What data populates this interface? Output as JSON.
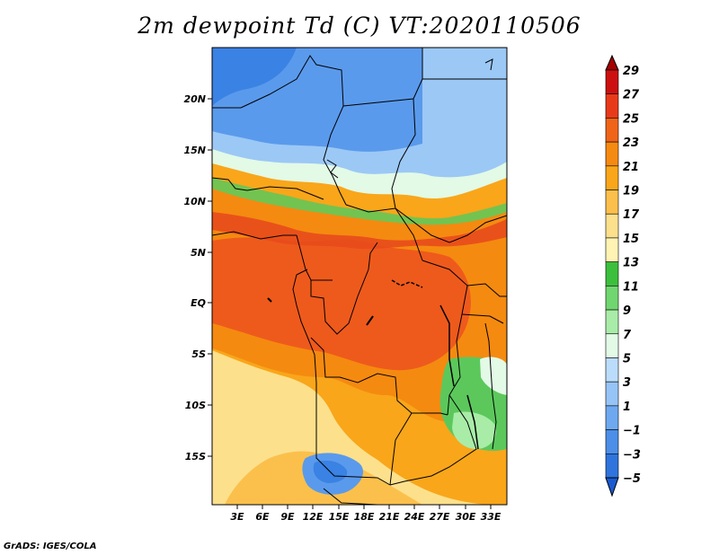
{
  "title": "2m dewpoint Td (C) VT:2020110506",
  "credit": "GrADS: IGES/COLA",
  "lat_ticks": [
    "20N",
    "15N",
    "10N",
    "5N",
    "EQ",
    "5S",
    "10S",
    "15S"
  ],
  "lon_ticks": [
    "3E",
    "6E",
    "9E",
    "12E",
    "15E",
    "18E",
    "21E",
    "24E",
    "27E",
    "30E",
    "33E"
  ],
  "legend": {
    "labels": [
      "29",
      "27",
      "25",
      "23",
      "21",
      "19",
      "17",
      "15",
      "13",
      "11",
      "9",
      "7",
      "5",
      "3",
      "1",
      "−1",
      "−3",
      "−5"
    ],
    "colors_top_to_bottom": [
      "#a50000",
      "#cc1010",
      "#e83a1a",
      "#f06418",
      "#f58a10",
      "#f9a61a",
      "#fbc04c",
      "#fde08c",
      "#fff4b4",
      "#3cbf3c",
      "#70d670",
      "#a8eca8",
      "#e2fae6",
      "#bcdcfb",
      "#96c4f6",
      "#6ea9f0",
      "#4c8ee8",
      "#2e74dc",
      "#1a5ad0"
    ]
  },
  "map_colors": {
    "deep_blue": "#3a82e4",
    "blue": "#5a9aec",
    "light_blue": "#9cc8f6",
    "pale": "#e2fae6",
    "green": "#5cc85c",
    "pale_yellow": "#fde08c",
    "yellow": "#fbc04c",
    "light_orange": "#f9a61a",
    "orange": "#f58a10",
    "red_orange": "#ee5a1c",
    "red": "#e84a1c"
  }
}
